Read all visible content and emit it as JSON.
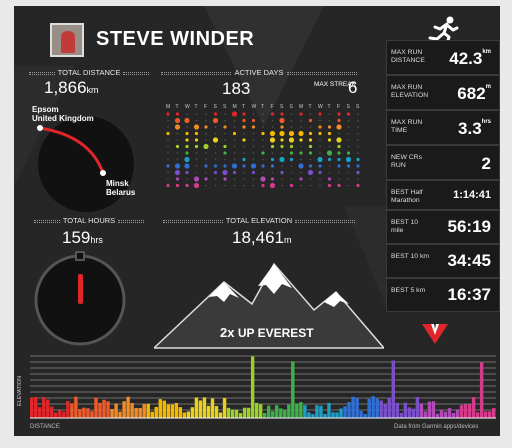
{
  "athlete": {
    "name": "STEVE WINDER"
  },
  "total_distance": {
    "label": "TOTAL DISTANCE",
    "value": "1,866",
    "unit": "km",
    "from_city": "Epsom",
    "from_country": "United Kingdom",
    "to_city": "Minsk",
    "to_country": "Belarus"
  },
  "active_days": {
    "label": "ACTIVE DAYS",
    "value": "183",
    "streak_label": "MAX STREAK",
    "streak_value": "6",
    "weekdays": [
      "M",
      "T",
      "W",
      "T",
      "F",
      "S",
      "S",
      "M",
      "T",
      "W",
      "T",
      "F",
      "S",
      "S",
      "M",
      "T",
      "W",
      "T",
      "F",
      "S",
      "S"
    ]
  },
  "total_hours": {
    "label": "TOTAL HOURS",
    "value": "159",
    "unit": "hrs"
  },
  "total_elevation": {
    "label": "TOTAL ELEVATION",
    "value": "18,461",
    "unit": "m",
    "everest_multiplier": "2x",
    "everest_text": "UP EVEREST"
  },
  "stats": [
    {
      "label": "MAX RUN DISTANCE",
      "value": "42.3",
      "unit": "km"
    },
    {
      "label": "MAX RUN ELEVATION",
      "value": "682",
      "unit": "m"
    },
    {
      "label": "MAX RUN TIME",
      "value": "3.3",
      "unit": "hrs"
    },
    {
      "label": "NEW CRs RUN",
      "value": "2",
      "unit": ""
    },
    {
      "label": "BEST Half Marathon",
      "value": "1:14:41",
      "unit": ""
    },
    {
      "label": "BEST 10 mile",
      "value": "56:19",
      "unit": ""
    },
    {
      "label": "BEST 10 km",
      "value": "34:45",
      "unit": ""
    },
    {
      "label": "BEST 5 km",
      "value": "16:37",
      "unit": ""
    }
  ],
  "histogram": {
    "ylabel": "ELEVATION",
    "xlabel": "DISTANCE",
    "source": "Data from Garmin apps/devices"
  },
  "colors": {
    "accent_red": "#e0262a",
    "card_bg": "#262626"
  }
}
